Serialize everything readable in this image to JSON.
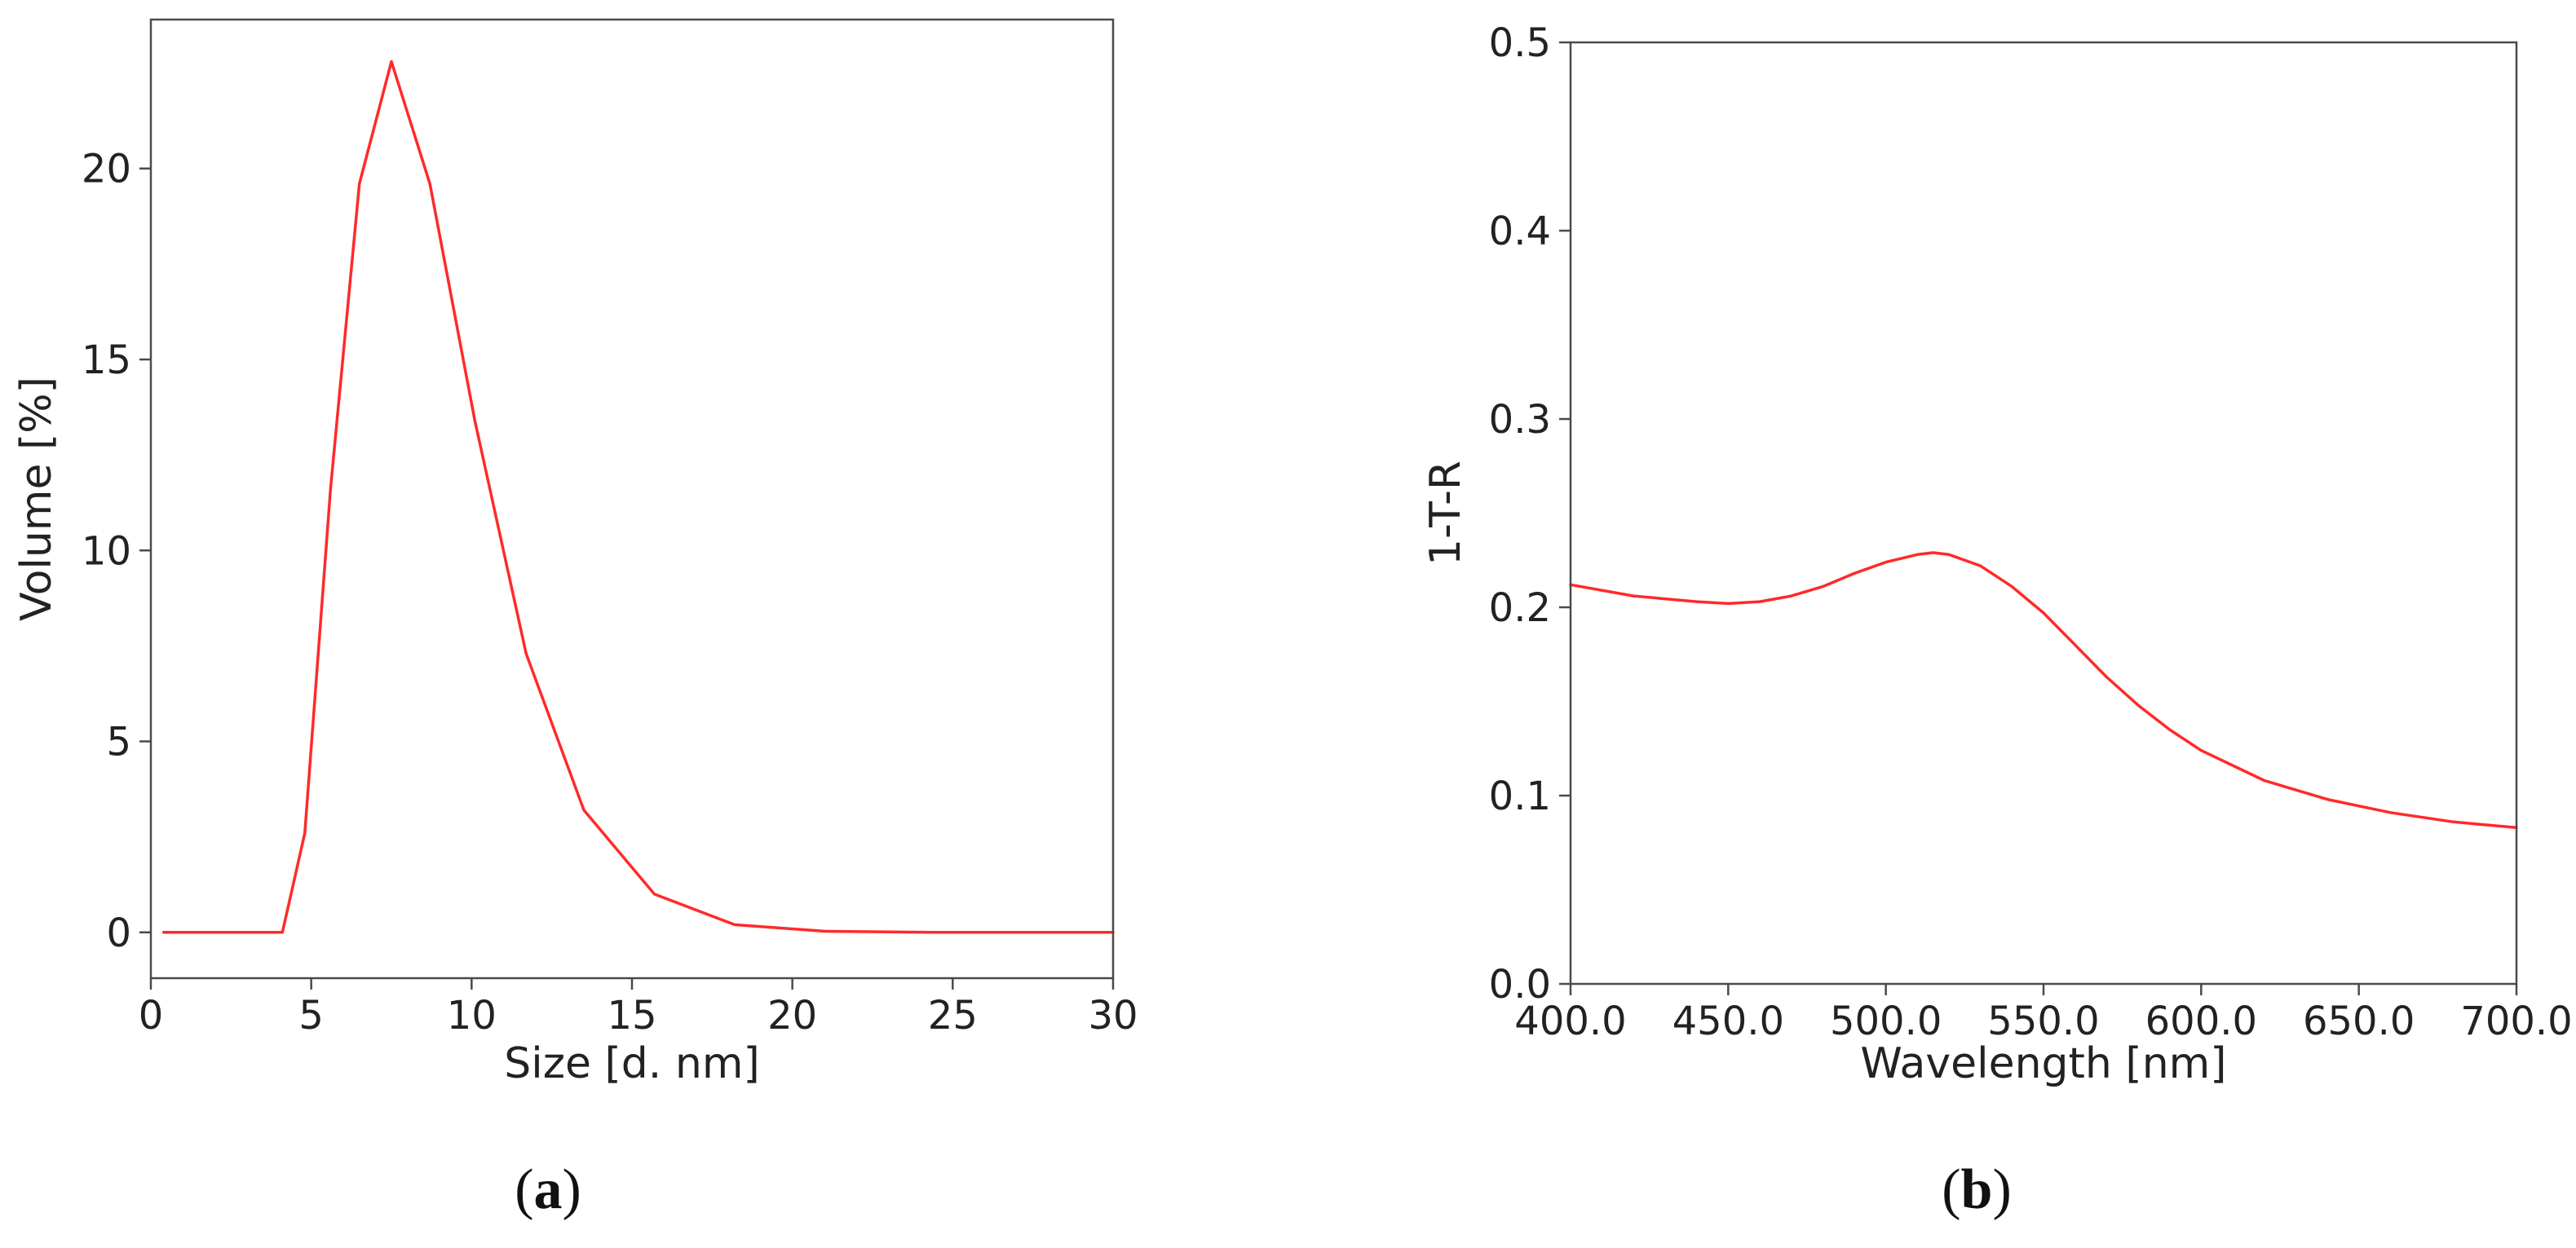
{
  "chart_data": [
    {
      "type": "line",
      "panel": "a",
      "caption_letter": "a",
      "xlabel": "Size [d. nm]",
      "ylabel": "Volume [%]",
      "xlim": [
        0,
        30
      ],
      "ylim": [
        -1.2,
        23.9
      ],
      "xticks": [
        0,
        5,
        10,
        15,
        20,
        25,
        30
      ],
      "yticks": [
        0,
        5,
        10,
        15,
        20
      ],
      "grid": false,
      "line_color": "#ff2a2a",
      "series": [
        {
          "x": [
            0.4,
            4.1,
            4.8,
            5.6,
            6.5,
            7.5,
            8.7,
            10.1,
            11.7,
            13.5,
            15.7,
            18.2,
            21.0,
            24.4,
            30.0
          ],
          "y": [
            0,
            0,
            2.6,
            11.6,
            19.6,
            22.8,
            19.6,
            13.4,
            7.3,
            3.2,
            1.0,
            0.2,
            0.03,
            0,
            0
          ]
        }
      ]
    },
    {
      "type": "line",
      "panel": "b",
      "caption_letter": "b",
      "xlabel": "Wavelength [nm]",
      "ylabel": "1-T-R",
      "xlim": [
        400,
        700
      ],
      "ylim": [
        0.0,
        0.5
      ],
      "xticks": [
        400,
        450,
        500,
        550,
        600,
        650,
        700
      ],
      "yticks": [
        0.0,
        0.1,
        0.2,
        0.3,
        0.4,
        0.5
      ],
      "grid": false,
      "line_color": "#ff2a2a",
      "series": [
        {
          "x": [
            400,
            420,
            440,
            450,
            460,
            470,
            480,
            490,
            500,
            510,
            515,
            520,
            530,
            540,
            550,
            560,
            570,
            580,
            590,
            600,
            620,
            640,
            660,
            680,
            700
          ],
          "y": [
            0.212,
            0.206,
            0.203,
            0.202,
            0.203,
            0.206,
            0.211,
            0.218,
            0.224,
            0.228,
            0.229,
            0.228,
            0.222,
            0.211,
            0.197,
            0.18,
            0.163,
            0.148,
            0.135,
            0.124,
            0.108,
            0.098,
            0.091,
            0.086,
            0.083
          ]
        }
      ]
    }
  ]
}
